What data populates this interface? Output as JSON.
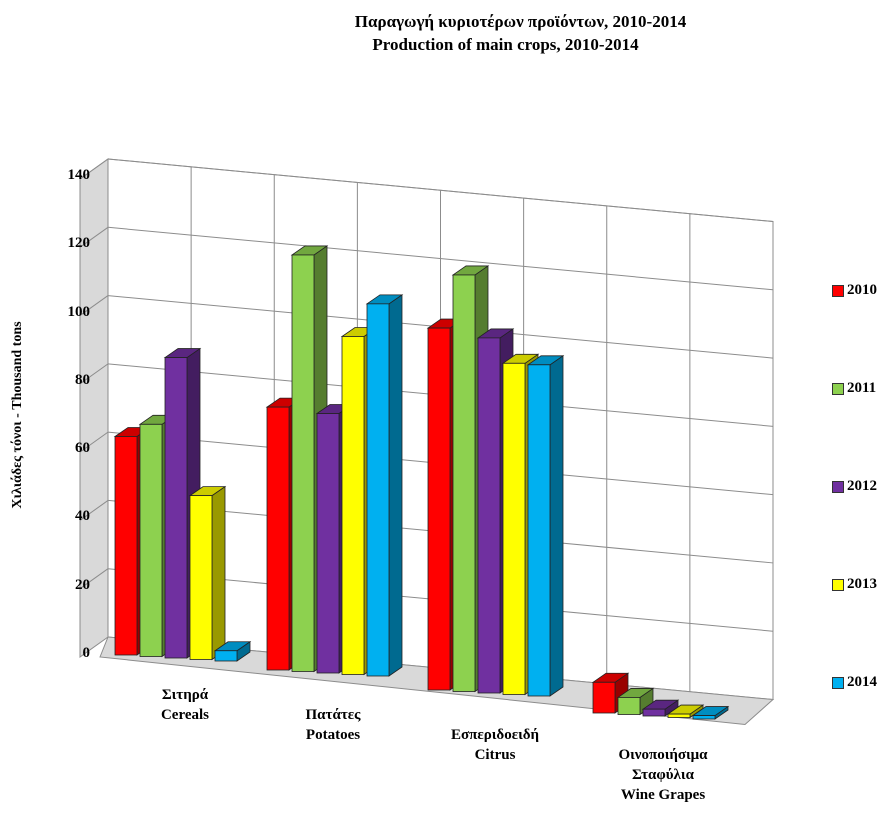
{
  "title_gr": "Παραγωγή κυριοτέρων προϊόντων,  2010-2014",
  "title_en": "Production of main crops, 2010-2014",
  "chart_data": {
    "type": "bar",
    "title": "Παραγωγή κυριοτέρων προϊόντων,  2010-2014 / Production of main crops, 2010-2014",
    "ylabel": "Χιλιάδες τόνοι - Thousand tons",
    "ylim": [
      0,
      140
    ],
    "yticks": [
      "0",
      "20",
      "40",
      "60",
      "80",
      "100",
      "120",
      "140"
    ],
    "grid": true,
    "legend_position": "right",
    "categories": [
      [
        "Σιτηρά",
        "Cereals"
      ],
      [
        "Πατάτες",
        "Potatoes"
      ],
      [
        "Εσπεριδοειδή",
        "Citrus"
      ],
      [
        "Οινοποιήσιμα",
        "Σταφύλια",
        "Wine Grapes"
      ]
    ],
    "series": [
      {
        "name": "2010",
        "color": "#ff0000",
        "values": [
          64,
          77,
          106,
          9
        ]
      },
      {
        "name": "2011",
        "color": "#8dd14f",
        "values": [
          68,
          122,
          122,
          5
        ]
      },
      {
        "name": "2012",
        "color": "#7030a0",
        "values": [
          88,
          76,
          104,
          2
        ]
      },
      {
        "name": "2013",
        "color": "#ffff00",
        "values": [
          48,
          99,
          97,
          1
        ]
      },
      {
        "name": "2014",
        "color": "#00b0f0",
        "values": [
          3,
          109,
          97,
          1
        ]
      }
    ]
  }
}
